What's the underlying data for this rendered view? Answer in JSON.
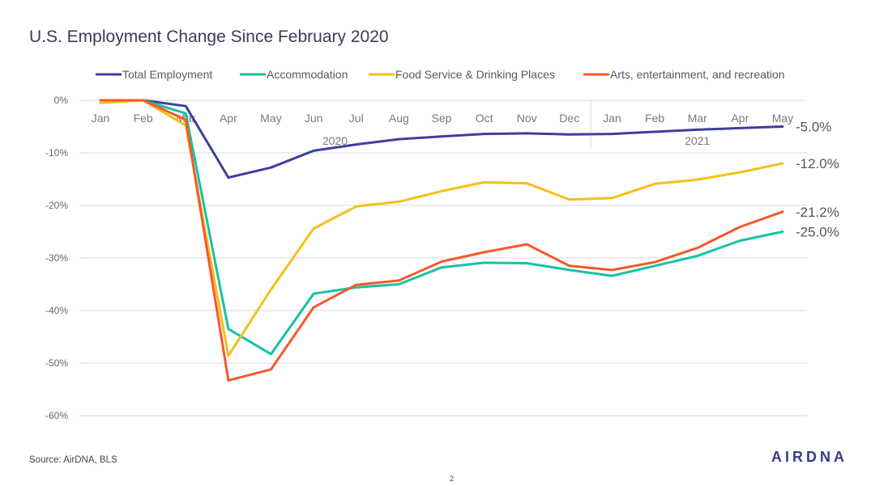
{
  "title": "U.S. Employment Change Since February 2020",
  "source": "Source: AirDNA, BLS",
  "page_number": "2",
  "logo_text": "AIRDNA",
  "chart_data": {
    "type": "line",
    "title": "",
    "xlabel": "",
    "ylabel": "",
    "categories": [
      "Jan",
      "Feb",
      "Mar",
      "Apr",
      "May",
      "Jun",
      "Jul",
      "Aug",
      "Sep",
      "Oct",
      "Nov",
      "Dec",
      "Jan",
      "Feb",
      "Mar",
      "Apr",
      "May"
    ],
    "year_groups": [
      {
        "label": "2020",
        "start": 0,
        "end": 11
      },
      {
        "label": "2021",
        "start": 12,
        "end": 16
      }
    ],
    "ylim": [
      -60,
      0
    ],
    "yticks": [
      0,
      -10,
      -20,
      -30,
      -40,
      -50,
      -60
    ],
    "ytick_labels": [
      "0%",
      "-10%",
      "-20%",
      "-30%",
      "-40%",
      "-50%",
      "-60%"
    ],
    "grid": true,
    "legend_position": "top",
    "series": [
      {
        "name": "Total Employment",
        "color": "#3e3f9f",
        "values": [
          0.0,
          0.0,
          -1.1,
          -14.7,
          -12.8,
          -9.6,
          -8.4,
          -7.4,
          -6.9,
          -6.4,
          -6.3,
          -6.5,
          -6.4,
          -6.0,
          -5.6,
          -5.3,
          -5.0
        ],
        "end_label": "-5.0%"
      },
      {
        "name": "Accommodation",
        "color": "#16c3a1",
        "values": [
          0.0,
          0.0,
          -2.5,
          -43.5,
          -48.3,
          -36.8,
          -35.6,
          -35.0,
          -31.8,
          -30.9,
          -31.0,
          -32.3,
          -33.4,
          -31.5,
          -29.6,
          -26.7,
          -25.0
        ],
        "end_label": "-25.0%"
      },
      {
        "name": "Food Service & Drinking Places",
        "color": "#f6bf1c",
        "values": [
          -0.5,
          0.0,
          -4.8,
          -48.6,
          -36.0,
          -24.4,
          -20.2,
          -19.3,
          -17.3,
          -15.6,
          -15.8,
          -18.9,
          -18.6,
          -15.9,
          -15.1,
          -13.7,
          -12.0
        ],
        "end_label": "-12.0%"
      },
      {
        "name": "Arts, entertainment, and recreation",
        "color": "#f6582c",
        "values": [
          0.0,
          0.0,
          -3.7,
          -53.3,
          -51.2,
          -39.4,
          -35.1,
          -34.3,
          -30.7,
          -28.9,
          -27.4,
          -31.5,
          -32.3,
          -30.8,
          -28.1,
          -24.1,
          -21.2
        ],
        "end_label": "-21.2%"
      }
    ]
  }
}
